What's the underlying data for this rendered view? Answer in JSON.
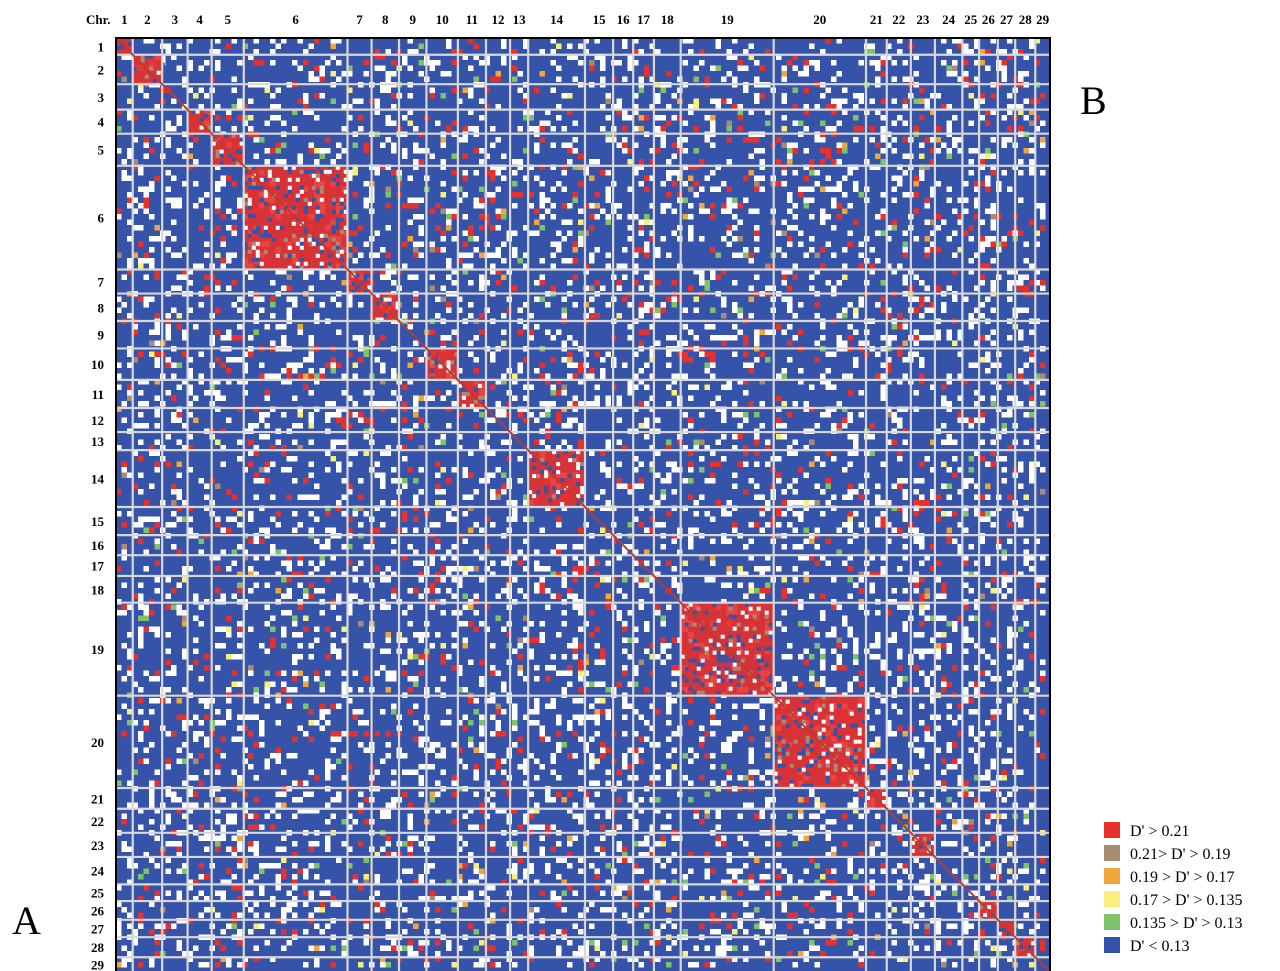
{
  "chart_data": {
    "type": "heatmap",
    "corner_label": "Chr.",
    "x_tick_labels": [
      "1",
      "2",
      "3",
      "4",
      "5",
      "6",
      "7",
      "8",
      "9",
      "10",
      "11",
      "12",
      "13",
      "14",
      "15",
      "16",
      "17",
      "18",
      "19",
      "20",
      "21",
      "22",
      "23",
      "24",
      "25",
      "26",
      "27",
      "28",
      "29"
    ],
    "y_tick_labels": [
      "1",
      "2",
      "3",
      "4",
      "5",
      "6",
      "7",
      "8",
      "9",
      "10",
      "11",
      "12",
      "13",
      "14",
      "15",
      "16",
      "17",
      "18",
      "19",
      "20",
      "21",
      "22",
      "23",
      "24",
      "25",
      "26",
      "27",
      "28",
      "29"
    ],
    "chromosome_bounds": [
      0,
      2.5,
      6.9,
      10.7,
      14.3,
      19.1,
      34.6,
      38.2,
      42.3,
      46.4,
      51.1,
      55.3,
      58.9,
      61.6,
      70.1,
      74.3,
      77.3,
      80.4,
      84.4,
      98.3,
      112.1,
      115.2,
      118.8,
      122.4,
      126.5,
      129.0,
      131.8,
      134.4,
      137.4,
      139.6
    ],
    "axis_range": [
      0,
      139.6
    ],
    "strong_ld_blocks": [
      "1",
      "2",
      "4",
      "5",
      "6",
      "7",
      "8",
      "10",
      "11",
      "14",
      "19",
      "20",
      "21",
      "23",
      "26",
      "27",
      "28"
    ],
    "legend_placement": "bottom-right",
    "panel_labels": [
      "A",
      "B"
    ],
    "legend": [
      {
        "label": "D' > 0.21",
        "color": "#e8302c"
      },
      {
        "label": "0.21> D' > 0.19",
        "color": "#a88b73"
      },
      {
        "label": "0.19 > D' > 0.17",
        "color": "#f0a63a"
      },
      {
        "label": "0.17 > D' > 0.135",
        "color": "#f7f07a"
      },
      {
        "label": "0.135 > D' > 0.13",
        "color": "#7ec26a"
      },
      {
        "label": "D' < 0.13",
        "color": "#3553a8"
      }
    ],
    "colors": {
      "background": "#3553a8",
      "missing": "#ffffff",
      "strong": "#e8302c",
      "diagonal": "#c0392b"
    }
  }
}
